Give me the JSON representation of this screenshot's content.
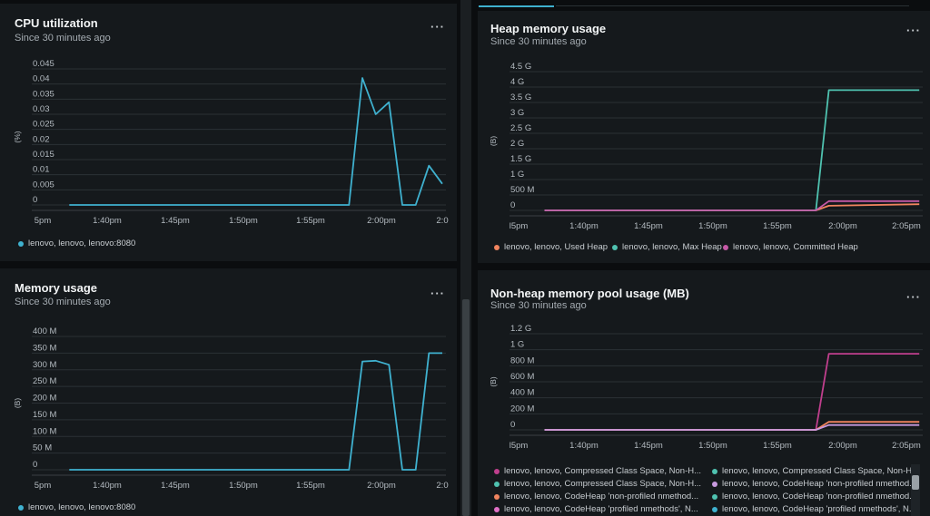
{
  "colors": {
    "cpu": "#3fb1cf",
    "mem": "#3fb1cf",
    "used_heap": "#f0845f",
    "max_heap": "#4fc2b0",
    "committed_heap": "#c559a6"
  },
  "panels": {
    "cpu": {
      "title": "CPU utilization",
      "subtitle": "Since 30 minutes ago",
      "menu": "···",
      "ylabel": "(%)",
      "legend": [
        "lenovo, lenovo, lenovo:8080"
      ]
    },
    "memory": {
      "title": "Memory usage",
      "subtitle": "Since 30 minutes ago",
      "menu": "···",
      "ylabel": "(B)",
      "legend": [
        "lenovo, lenovo, lenovo:8080"
      ]
    },
    "heap": {
      "title": "Heap memory usage",
      "subtitle": "Since 30 minutes ago",
      "menu": "···",
      "ylabel": "(B)",
      "legend": [
        "lenovo, lenovo, Used Heap",
        "lenovo, lenovo, Max Heap",
        "lenovo, lenovo, Committed Heap"
      ]
    },
    "nonheap": {
      "title": "Non-heap memory pool usage (MB)",
      "subtitle": "Since 30 minutes ago",
      "menu": "···",
      "ylabel": "(B)",
      "legend": [
        "lenovo, lenovo, Compressed Class Space, Non-H...",
        "lenovo, lenovo, Compressed Class Space, Non-H...",
        "lenovo, lenovo, Compressed Class Space, Non-H...",
        "lenovo, lenovo, CodeHeap 'non-profiled nmethod...",
        "lenovo, lenovo, CodeHeap 'non-profiled nmethod...",
        "lenovo, lenovo, CodeHeap 'non-profiled nmethod...",
        "lenovo, lenovo, CodeHeap 'profiled nmethods', N...",
        "lenovo, lenovo, CodeHeap 'profiled nmethods', N..."
      ],
      "legend_colors": [
        "#c03f8d",
        "#4fc2b0",
        "#4fc2b0",
        "#c89adf",
        "#f0845f",
        "#4fc2b0",
        "#e070c6",
        "#3fb1cf"
      ]
    }
  },
  "chart_data": [
    {
      "type": "line",
      "title": "CPU utilization",
      "ylabel": "(%)",
      "x_ticks": [
        "5pm",
        "1:40pm",
        "1:45pm",
        "1:50pm",
        "1:55pm",
        "2:00pm",
        "2:0"
      ],
      "y_ticks": [
        "0",
        "0.005",
        "0.01",
        "0.015",
        "0.02",
        "0.025",
        "0.03",
        "0.035",
        "0.04",
        "0.045"
      ],
      "ylim": [
        0,
        0.045
      ],
      "series": [
        {
          "name": "lenovo, lenovo, lenovo:8080",
          "x": [
            "1:37pm",
            "1:58pm",
            "1:59pm",
            "2:00pm",
            "2:01pm",
            "2:02pm",
            "2:03pm",
            "2:04pm",
            "2:05pm"
          ],
          "values": [
            0,
            0,
            0.042,
            0.03,
            0.034,
            0,
            0,
            0.013,
            0.007
          ]
        }
      ]
    },
    {
      "type": "line",
      "title": "Memory usage",
      "ylabel": "(B)",
      "x_ticks": [
        "5pm",
        "1:40pm",
        "1:45pm",
        "1:50pm",
        "1:55pm",
        "2:00pm",
        "2:0"
      ],
      "y_ticks": [
        "0",
        "50 M",
        "100 M",
        "150 M",
        "200 M",
        "250 M",
        "300 M",
        "350 M",
        "400 M"
      ],
      "ylim": [
        0,
        400
      ],
      "series": [
        {
          "name": "lenovo, lenovo, lenovo:8080",
          "x": [
            "1:37pm",
            "1:58pm",
            "1:59pm",
            "2:00pm",
            "2:01pm",
            "2:02pm",
            "2:03pm",
            "2:04pm",
            "2:05pm"
          ],
          "values": [
            0,
            0,
            325,
            327,
            315,
            0,
            0,
            350,
            350
          ]
        }
      ]
    },
    {
      "type": "line",
      "title": "Heap memory usage",
      "ylabel": "(B)",
      "x_ticks": [
        "l5pm",
        "1:40pm",
        "1:45pm",
        "1:50pm",
        "1:55pm",
        "2:00pm",
        "2:05pm"
      ],
      "y_ticks": [
        "0",
        "500 M",
        "1 G",
        "1.5 G",
        "2 G",
        "2.5 G",
        "3 G",
        "3.5 G",
        "4 G",
        "4.5 G"
      ],
      "ylim": [
        0,
        4.5
      ],
      "series": [
        {
          "name": "lenovo, lenovo, Used Heap",
          "x": [
            "1:37pm",
            "1:58pm",
            "1:59pm",
            "2:06pm"
          ],
          "values": [
            0,
            0,
            0.15,
            0.2
          ]
        },
        {
          "name": "lenovo, lenovo, Max Heap",
          "x": [
            "1:37pm",
            "1:58pm",
            "1:59pm",
            "2:06pm"
          ],
          "values": [
            0,
            0,
            3.9,
            3.9
          ]
        },
        {
          "name": "lenovo, lenovo, Committed Heap",
          "x": [
            "1:37pm",
            "1:58pm",
            "1:59pm",
            "2:06pm"
          ],
          "values": [
            0,
            0,
            0.3,
            0.3
          ]
        }
      ]
    },
    {
      "type": "line",
      "title": "Non-heap memory pool usage (MB)",
      "ylabel": "(B)",
      "x_ticks": [
        "l5pm",
        "1:40pm",
        "1:45pm",
        "1:50pm",
        "1:55pm",
        "2:00pm",
        "2:05pm"
      ],
      "y_ticks": [
        "0",
        "200 M",
        "400 M",
        "600 M",
        "800 M",
        "1 G",
        "1.2 G"
      ],
      "ylim": [
        0,
        1.2
      ],
      "series": [
        {
          "name": "lenovo, lenovo, Compressed Class Space, Non-H...",
          "x": [
            "1:37pm",
            "1:58pm",
            "1:59pm",
            "2:06pm"
          ],
          "values": [
            0,
            0,
            0.95,
            0.95
          ]
        },
        {
          "name": "lenovo, lenovo, CodeHeap 'non-profiled nmethod...",
          "x": [
            "1:37pm",
            "1:58pm",
            "1:59pm",
            "2:06pm"
          ],
          "values": [
            0,
            0,
            0.1,
            0.1
          ]
        },
        {
          "name": "lenovo, lenovo, CodeHeap 'profiled nmethods', N...",
          "x": [
            "1:37pm",
            "1:58pm",
            "1:59pm",
            "2:06pm"
          ],
          "values": [
            0,
            0,
            0.06,
            0.06
          ]
        }
      ]
    }
  ]
}
